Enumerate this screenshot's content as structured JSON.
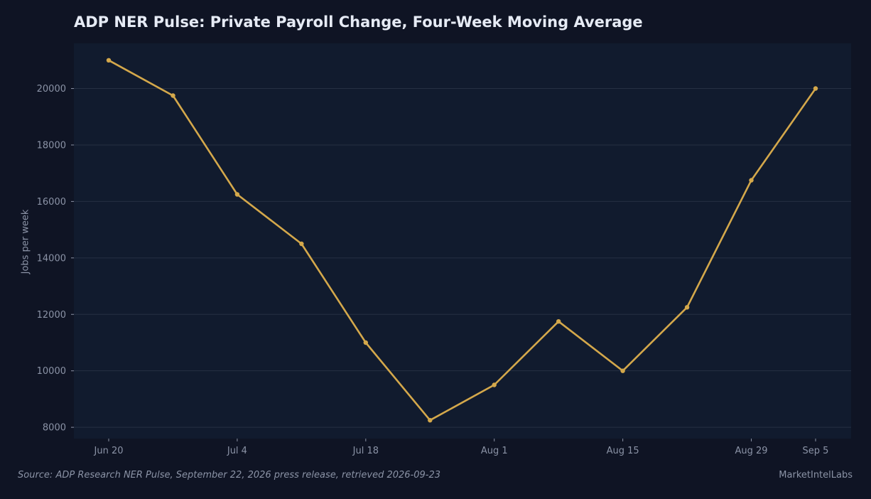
{
  "chart_data": {
    "type": "line",
    "title": "ADP NER Pulse: Private Payroll Change, Four-Week Moving Average",
    "xlabel": "",
    "ylabel": "Jobs per week",
    "ylim": [
      7600,
      21600
    ],
    "yticks": [
      8000,
      10000,
      12000,
      14000,
      16000,
      18000,
      20000
    ],
    "xticks": [
      "Jun 20",
      "Jul 4",
      "Jul 18",
      "Aug 1",
      "Aug 15",
      "Aug 29",
      "Sep 5"
    ],
    "x": [
      "2026-06-20",
      "2026-06-27",
      "2026-07-04",
      "2026-07-11",
      "2026-07-18",
      "2026-07-25",
      "2026-08-01",
      "2026-08-08",
      "2026-08-15",
      "2026-08-22",
      "2026-08-29",
      "2026-09-05"
    ],
    "series": [
      {
        "values": [
          21000,
          19750,
          16250,
          14500,
          11000,
          8250,
          9500,
          11750,
          10000,
          12250,
          16750,
          20000
        ],
        "color": "#d4a84b"
      }
    ],
    "grid": true,
    "legend": "none"
  },
  "footer": {
    "source": "Source: ADP Research NER Pulse, September 22, 2026 press release, retrieved 2026-09-23",
    "brand": "MarketIntelLabs"
  },
  "colors": {
    "background": "#0f1424",
    "plot_background": "#111b2e",
    "grid": "#263043",
    "text": "#8b93a6",
    "title": "#e6ebf5",
    "line": "#d4a84b"
  }
}
